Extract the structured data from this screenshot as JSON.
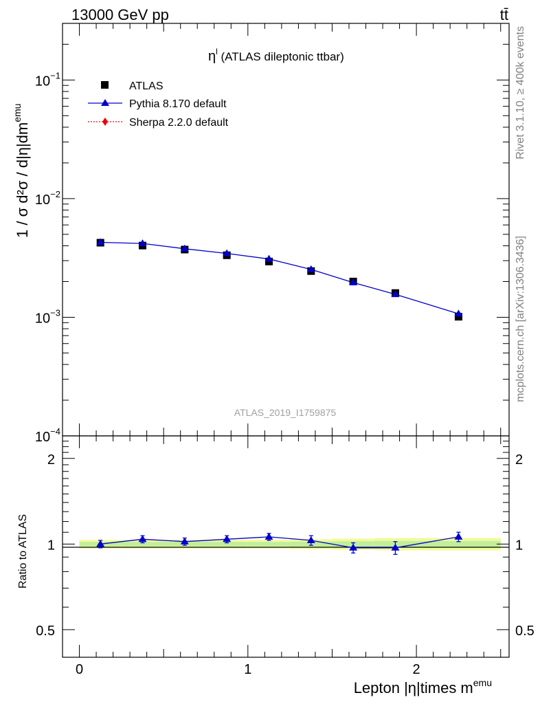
{
  "header": {
    "left": "13000 GeV pp",
    "right": "tt̄"
  },
  "side_labels": {
    "top": "Rivet 3.1.10, ≥ 400k events",
    "bottom": "mcplots.cern.ch [arXiv:1306.3436]"
  },
  "chart_data": {
    "type": "scatter",
    "title": "η",
    "title_sup": "l",
    "title_rest": " (ATLAS dileptonic ttbar)",
    "watermark": "ATLAS_2019_I1759875",
    "ylabel": "1 / σ  d²σ / d|η|dm",
    "ylabel_sup": "emu",
    "xlabel": "Lepton |η|times m",
    "xlabel_sup": "emu",
    "ratio_ylabel": "Ratio to ATLAS",
    "x_ticks": [
      "0",
      "1",
      "2"
    ],
    "y_ticks_main": [
      {
        "base": "10",
        "exp": "−1",
        "value": 0.1
      },
      {
        "base": "10",
        "exp": "−2",
        "value": 0.01
      },
      {
        "base": "10",
        "exp": "−3",
        "value": 0.001
      },
      {
        "base": "10",
        "exp": "−4",
        "value": 0.0001
      }
    ],
    "y_ticks_ratio": [
      "2",
      "1",
      "0.5"
    ],
    "xlim": [
      -0.1,
      2.55
    ],
    "ylim": [
      0.0001,
      0.3
    ],
    "ratio_ylim": [
      0.4,
      2.4
    ],
    "log_y": true,
    "legend": {
      "placement": "top-left",
      "entries": [
        "ATLAS",
        "Pythia 8.170 default",
        "Sherpa 2.2.0 default"
      ]
    },
    "x": [
      0.125,
      0.375,
      0.625,
      0.875,
      1.125,
      1.375,
      1.625,
      1.875,
      2.25
    ],
    "x_edges": [
      0,
      0.25,
      0.5,
      0.75,
      1.0,
      1.25,
      1.5,
      1.75,
      2.0,
      2.5
    ],
    "series": [
      {
        "name": "ATLAS",
        "color": "#000000",
        "marker": "square",
        "values": [
          0.00425,
          0.00402,
          0.00372,
          0.00333,
          0.00295,
          0.00245,
          0.002,
          0.0016,
          0.00101
        ],
        "ratio_band": [
          0.035,
          0.035,
          0.035,
          0.035,
          0.035,
          0.04,
          0.045,
          0.05,
          0.05
        ]
      },
      {
        "name": "Pythia 8.170 default",
        "color": "#0000cc",
        "marker": "triangle",
        "values": [
          0.00428,
          0.00419,
          0.00378,
          0.00345,
          0.0031,
          0.00253,
          0.00196,
          0.00156,
          0.00107
        ],
        "ratio": [
          1.0,
          1.04,
          1.02,
          1.04,
          1.06,
          1.03,
          0.97,
          0.97,
          1.06
        ],
        "ratio_err": [
          0.03,
          0.03,
          0.03,
          0.03,
          0.03,
          0.04,
          0.04,
          0.05,
          0.04
        ]
      },
      {
        "name": "Sherpa 2.2.0 default",
        "color": "#ee0000",
        "marker": "diamond",
        "values": []
      }
    ]
  }
}
